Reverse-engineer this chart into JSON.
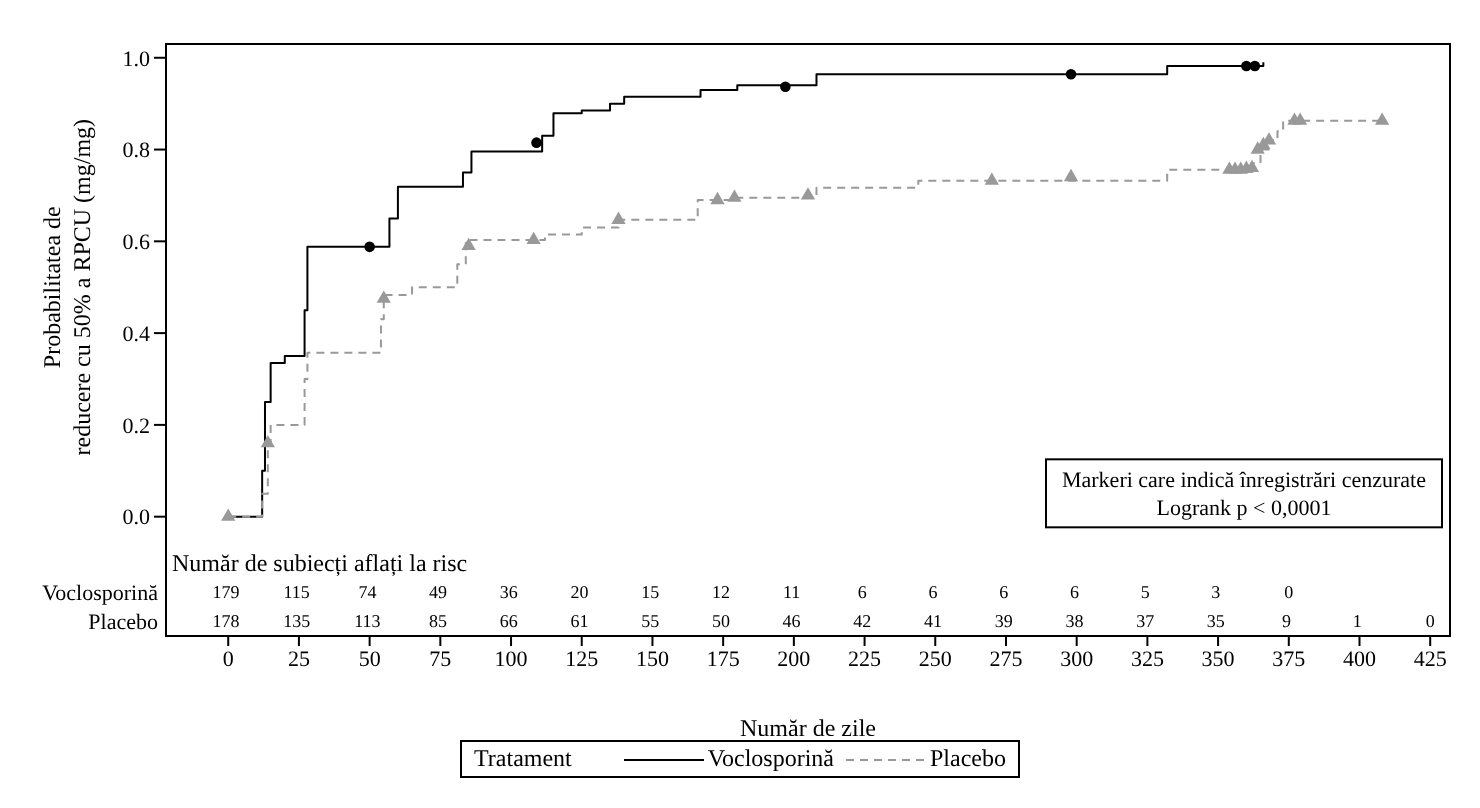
{
  "chart_data": {
    "type": "step",
    "ylabel": "Probabilitatea de\nreducere cu 50% a RPCU (mg/mg)",
    "xlabel": "Număr de zile",
    "legend_title": "Tratament",
    "legend": "bottom",
    "grid": false,
    "xlim": [
      -22,
      432
    ],
    "xticks": [
      0,
      25,
      50,
      75,
      100,
      125,
      150,
      175,
      200,
      225,
      250,
      275,
      300,
      325,
      350,
      375,
      400,
      425
    ],
    "ylim": [
      -0.26,
      1.03
    ],
    "yticks": [
      {
        "value": 0,
        "label": "0.0"
      },
      {
        "value": 0.2,
        "label": "0.2"
      },
      {
        "value": 0.4,
        "label": "0.4"
      },
      {
        "value": 0.6,
        "label": "0.6"
      },
      {
        "value": 0.8,
        "label": "0.8"
      },
      {
        "value": 1,
        "label": "1.0"
      }
    ],
    "series": [
      {
        "name": "Voclosporină",
        "color": "#000000",
        "line_style": "solid",
        "marker": "none",
        "x": [
          0,
          12,
          13,
          15,
          20,
          27,
          28,
          57,
          60,
          83,
          86,
          111,
          115,
          125,
          135,
          140,
          167,
          180,
          208,
          332,
          366
        ],
        "values": [
          0,
          0.1,
          0.25,
          0.335,
          0.35,
          0.45,
          0.588,
          0.65,
          0.719,
          0.75,
          0.796,
          0.83,
          0.879,
          0.885,
          0.9,
          0.915,
          0.93,
          0.94,
          0.964,
          0.982,
          0.99
        ]
      },
      {
        "name": "Placebo",
        "color": "#999999",
        "line_style": "dashed",
        "marker": "none",
        "x": [
          0,
          12,
          14,
          15,
          27,
          28,
          54,
          55,
          65,
          81,
          84,
          112,
          125,
          138,
          166,
          180,
          208,
          244,
          332,
          362,
          365,
          368,
          371,
          373,
          408
        ],
        "values": [
          0,
          0.05,
          0.16,
          0.2,
          0.3,
          0.357,
          0.43,
          0.483,
          0.5,
          0.55,
          0.603,
          0.615,
          0.63,
          0.647,
          0.69,
          0.695,
          0.717,
          0.732,
          0.756,
          0.77,
          0.8,
          0.82,
          0.84,
          0.863,
          0.863
        ]
      },
      {
        "type": "scatter",
        "color": "#000000",
        "marker": "circle",
        "x": [
          50,
          109,
          197,
          298,
          360,
          363
        ],
        "values": [
          0.588,
          0.815,
          0.937,
          0.964,
          0.982,
          0.982
        ]
      },
      {
        "type": "scatter",
        "color": "#999999",
        "marker": "triangle",
        "x": [
          0,
          14,
          55,
          85,
          108,
          138,
          173,
          179,
          205,
          270,
          298,
          354,
          356,
          358,
          360,
          362,
          364,
          366,
          368,
          377,
          379,
          408
        ],
        "values": [
          0,
          0.16,
          0.475,
          0.59,
          0.603,
          0.647,
          0.69,
          0.695,
          0.7,
          0.732,
          0.74,
          0.756,
          0.756,
          0.756,
          0.758,
          0.76,
          0.8,
          0.81,
          0.82,
          0.863,
          0.863,
          0.863
        ]
      }
    ],
    "annotations": [
      "Markeri care indică înregistrări cenzurate\nLogrank p < 0,0001",
      "Număr de subiecți aflați la risc",
      "Voclosporină",
      "Placebo",
      "179 115 74 49 36 20 15 12 11 6 6 6 6 5 3 0",
      "178 135 113 85 66 61 55 50 46 42 41 39 38 37 35 9 1 0"
    ]
  }
}
